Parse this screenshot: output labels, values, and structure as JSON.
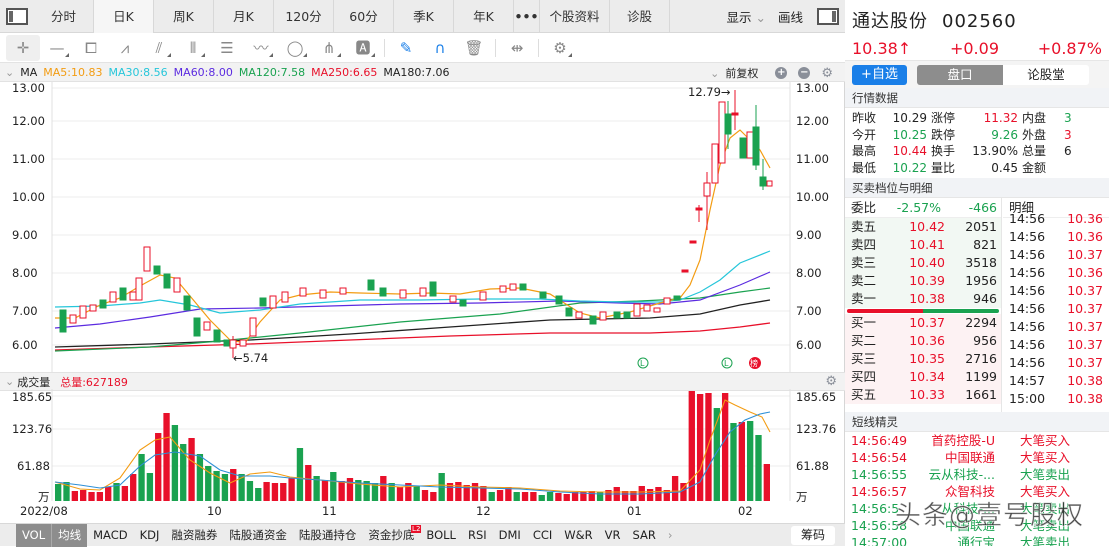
{
  "tabs": [
    {
      "label": "分时",
      "active": false
    },
    {
      "label": "日K",
      "active": true
    },
    {
      "label": "周K",
      "active": false
    },
    {
      "label": "月K",
      "active": false
    },
    {
      "label": "120分",
      "active": false
    },
    {
      "label": "60分",
      "active": false
    },
    {
      "label": "季K",
      "active": false
    },
    {
      "label": "年K",
      "active": false
    },
    {
      "label": "•••",
      "active": false
    },
    {
      "label": "个股资料",
      "active": false
    },
    {
      "label": "诊股",
      "active": false
    }
  ],
  "tabs_right": {
    "display": "显示",
    "draw": "画线"
  },
  "toolbar": [
    "crosshair",
    "line",
    "rectangle",
    "fan",
    "parallel",
    "vertical-lines",
    "text-lines",
    "polyline",
    "circle",
    "pitchfork",
    "text-box",
    "eraser",
    "magnet",
    "trash",
    "split",
    "settings"
  ],
  "ma": {
    "label": "MA",
    "items": [
      {
        "text": "MA5:10.83",
        "color": "#f39c12"
      },
      {
        "text": "MA30:8.56",
        "color": "#26c6da"
      },
      {
        "text": "MA60:8.00",
        "color": "#5b2be0"
      },
      {
        "text": "MA120:7.58",
        "color": "#1aa250"
      },
      {
        "text": "MA250:6.65",
        "color": "#e8102a"
      },
      {
        "text": "MA180:7.06",
        "color": "#222222"
      }
    ],
    "adjust": "前复权"
  },
  "price_axis": [
    "13.00",
    "12.00",
    "11.00",
    "10.00",
    "9.00",
    "8.00",
    "7.00",
    "6.00"
  ],
  "annotations": {
    "high": "12.79→",
    "low": "←5.74"
  },
  "volume": {
    "label": "成交量",
    "total": "总量:627189",
    "axis": [
      "185.65",
      "123.76",
      "61.88",
      "万"
    ]
  },
  "x_axis": [
    "2022/08",
    "10",
    "11",
    "12",
    "01",
    "02"
  ],
  "indicators": [
    {
      "label": "VOL",
      "on": true
    },
    {
      "label": "均线",
      "on": true
    },
    {
      "label": "MACD"
    },
    {
      "label": "KDJ"
    },
    {
      "label": "融资融券"
    },
    {
      "label": "陆股通资金"
    },
    {
      "label": "陆股通持仓"
    },
    {
      "label": "资金抄底",
      "badge": "L2"
    },
    {
      "label": "BOLL"
    },
    {
      "label": "RSI"
    },
    {
      "label": "DMI"
    },
    {
      "label": "CCI"
    },
    {
      "label": "W&R"
    },
    {
      "label": "VR"
    },
    {
      "label": "SAR"
    },
    {
      "label": "›"
    }
  ],
  "chip": "筹码",
  "stock": {
    "name": "通达股份",
    "code": "002560",
    "price": "10.38↑",
    "change": "+0.09",
    "pct": "+0.87%"
  },
  "buttons": {
    "add": "+自选",
    "seg_a": "盘口",
    "seg_b": "论股堂"
  },
  "quote_title": "行情数据",
  "quote": [
    {
      "l1": "昨收",
      "v1": "10.29",
      "c1": "",
      "l2": "涨停",
      "v2": "11.32",
      "c2": "red",
      "l3": "内盘",
      "v3": "3",
      "c3": "green"
    },
    {
      "l1": "今开",
      "v1": "10.25",
      "c1": "green",
      "l2": "跌停",
      "v2": "9.26",
      "c2": "green",
      "l3": "外盘",
      "v3": "3",
      "c3": "red"
    },
    {
      "l1": "最高",
      "v1": "10.44",
      "c1": "red",
      "l2": "换手",
      "v2": "13.90%",
      "c2": "",
      "l3": "总量",
      "v3": "6",
      "c3": ""
    },
    {
      "l1": "最低",
      "v1": "10.22",
      "c1": "green",
      "l2": "量比",
      "v2": "0.45",
      "c2": "",
      "l3": "金额",
      "v3": "",
      "c3": ""
    }
  ],
  "ob_title": "买卖档位与明细",
  "weibi": {
    "label": "委比",
    "pct": "-2.57%",
    "diff": "-466",
    "detail": "明细"
  },
  "sells": [
    {
      "n": "卖五",
      "p": "10.42",
      "v": "2051"
    },
    {
      "n": "卖四",
      "p": "10.41",
      "v": "821"
    },
    {
      "n": "卖三",
      "p": "10.40",
      "v": "3518"
    },
    {
      "n": "卖二",
      "p": "10.39",
      "v": "1956"
    },
    {
      "n": "卖一",
      "p": "10.38",
      "v": "946"
    }
  ],
  "buys": [
    {
      "n": "买一",
      "p": "10.37",
      "v": "2294"
    },
    {
      "n": "买二",
      "p": "10.36",
      "v": "956"
    },
    {
      "n": "买三",
      "p": "10.35",
      "v": "2716"
    },
    {
      "n": "买四",
      "p": "10.34",
      "v": "1199"
    },
    {
      "n": "买五",
      "p": "10.33",
      "v": "1661"
    }
  ],
  "details": [
    {
      "t": "14:56",
      "p": "10.36"
    },
    {
      "t": "14:56",
      "p": "10.36"
    },
    {
      "t": "14:56",
      "p": "10.37"
    },
    {
      "t": "14:56",
      "p": "10.36"
    },
    {
      "t": "14:56",
      "p": "10.37"
    },
    {
      "t": "14:56",
      "p": "10.37"
    },
    {
      "t": "14:56",
      "p": "10.37"
    },
    {
      "t": "14:56",
      "p": "10.37"
    },
    {
      "t": "14:56",
      "p": "10.37"
    },
    {
      "t": "14:57",
      "p": "10.38"
    },
    {
      "t": "15:00",
      "p": "10.38"
    }
  ],
  "sprite_title": "短线精灵",
  "sprite": [
    {
      "t": "14:56:49",
      "n": "首药控股-U",
      "a": "大笔买入",
      "c": "red"
    },
    {
      "t": "14:56:54",
      "n": "中国联通",
      "a": "大笔买入",
      "c": "red"
    },
    {
      "t": "14:56:55",
      "n": "云从科技-...",
      "a": "大笔卖出",
      "c": "green"
    },
    {
      "t": "14:56:57",
      "n": "众智科技",
      "a": "大笔买入",
      "c": "red"
    },
    {
      "t": "14:56:5",
      "n": "从科技-...",
      "a": "大笔卖出",
      "c": "green"
    },
    {
      "t": "14:56:58",
      "n": "中国联通",
      "a": "大笔卖出",
      "c": "green"
    },
    {
      "t": "14:57:00",
      "n": "通行宝",
      "a": "大笔卖出",
      "c": "green"
    }
  ],
  "watermark": "头条@壹号股权",
  "colors": {
    "up": "#e8102a",
    "down": "#1aa250",
    "accent": "#1a7fe8"
  }
}
